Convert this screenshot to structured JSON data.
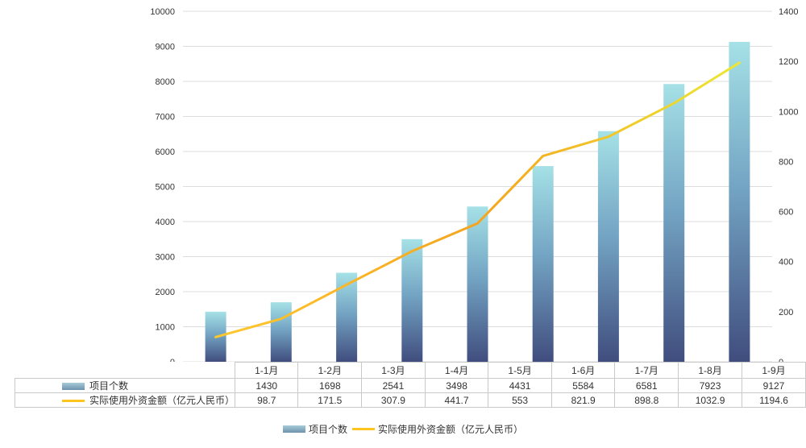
{
  "chart_data": {
    "type": "combo-bar-line",
    "categories": [
      "1-1月",
      "1-2月",
      "1-3月",
      "1-4月",
      "1-5月",
      "1-6月",
      "1-7月",
      "1-8月",
      "1-9月"
    ],
    "series": [
      {
        "name": "项目个数",
        "type": "bar",
        "axis": "left",
        "values": [
          1430,
          1698,
          2541,
          3498,
          4431,
          5584,
          6581,
          7923,
          9127
        ]
      },
      {
        "name": "实际使用外资金额（亿元人民币）",
        "type": "line",
        "axis": "right",
        "values": [
          98.7,
          171.5,
          307.9,
          441.7,
          553,
          821.9,
          898.8,
          1032.9,
          1194.6
        ]
      }
    ],
    "left_axis": {
      "min": 0,
      "max": 10000,
      "step": 1000,
      "ticks": [
        "0",
        "1000",
        "2000",
        "3000",
        "4000",
        "5000",
        "6000",
        "7000",
        "8000",
        "9000",
        "10000"
      ]
    },
    "right_axis": {
      "min": 0,
      "max": 1400,
      "step": 200,
      "ticks": [
        "0",
        "200",
        "400",
        "600",
        "800",
        "1000",
        "1200",
        "1400"
      ]
    },
    "grid": true,
    "legend_position": "bottom",
    "data_table_shown": true,
    "title": ""
  },
  "colors": {
    "bar_gradient_top": "#a5e1e6",
    "bar_gradient_mid": "#74a5c4",
    "bar_gradient_bottom": "#404d7e",
    "line_start": "#ffc82f",
    "line_mid": "#f5a41e",
    "line_end": "#ede733",
    "line_solid": "#ffc41e",
    "legend_swatch_top": "#a6ccd9",
    "legend_swatch_bottom": "#6e91ac",
    "grid_line": "#dddddd",
    "table_border": "#c9c9c9",
    "text": "#333333"
  }
}
